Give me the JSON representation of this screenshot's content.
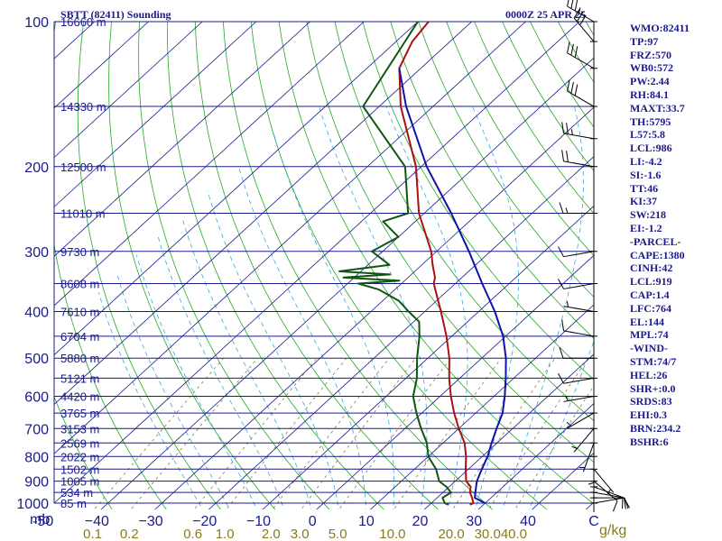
{
  "header": {
    "title": "SBTT (82411) Sounding",
    "datetime": "0000Z 25 APR 25"
  },
  "indices": [
    "WMO:82411",
    "TP:97",
    "FRZ:570",
    "WB0:572",
    "PW:2.44",
    "RH:84.1",
    "MAXT:33.7",
    "TH:5795",
    "L57:5.8",
    "LCL:986",
    "LI:-4.2",
    "SI:-1.6",
    "TT:46",
    "KI:37",
    "SW:218",
    "EI:-1.2",
    "-PARCEL-",
    "CAPE:1380",
    "CINH:42",
    "LCL:919",
    "CAP:1.4",
    "LFC:764",
    "EL:144",
    "MPL:74",
    "-WIND-",
    "STM:74/7",
    "HEL:26",
    "SHR+:0.0",
    "SRDS:83",
    "EHI:0.3",
    "BRN:234.2",
    "BSHR:6"
  ],
  "axes": {
    "pressure_unit": "mb",
    "mixing_ratio_unit": "g/kg"
  },
  "colors": {
    "grid": "#1a1a8c",
    "dry_adiabat": "#22aa22",
    "moist_adiabat": "#33aadd",
    "mixing_ratio": "#8a7a3a",
    "temperature": "#aa1111",
    "dewpoint": "#115511",
    "parcel": "#1111aa",
    "mixing_labels": "#8a7a1a"
  },
  "chart_data": {
    "type": "line",
    "title": "SBTT (82411) Sounding",
    "subtitle": "0000Z 25 APR 25",
    "xlabel": "",
    "ylabel": "mb",
    "y_scale": "log",
    "pressure_levels": [
      100,
      200,
      300,
      400,
      500,
      600,
      700,
      800,
      900,
      1000
    ],
    "temperature_ticks": [
      -50,
      -40,
      -30,
      -20,
      -10,
      0,
      10,
      20,
      30,
      40
    ],
    "temperature_tick_labels": [
      "-50",
      "−40",
      "−30",
      "−20",
      "−10",
      "0",
      "10",
      "20",
      "30",
      "40",
      "C"
    ],
    "mixing_ratio_ticks": [
      0.1,
      0.2,
      0.6,
      1.0,
      2.0,
      3.0,
      5.0,
      10.0,
      20.0,
      30.0,
      40.0
    ],
    "mixing_ratio_tick_labels": [
      "0.1",
      "0.2",
      "0.6",
      "1.0",
      "2.0",
      "3.0",
      "5.0",
      "10.0",
      "20.0",
      "30.0",
      "40.0",
      "g/kg"
    ],
    "height_labels": [
      {
        "p": 100,
        "label": "16660 m"
      },
      {
        "p": 150,
        "label": "14330 m"
      },
      {
        "p": 200,
        "label": "12500 m"
      },
      {
        "p": 250,
        "label": "11010 m"
      },
      {
        "p": 300,
        "label": "9730 m"
      },
      {
        "p": 350,
        "label": "8608 m"
      },
      {
        "p": 400,
        "label": "7610 m"
      },
      {
        "p": 450,
        "label": "6704 m"
      },
      {
        "p": 500,
        "label": "5880 m"
      },
      {
        "p": 550,
        "label": "5121 m"
      },
      {
        "p": 600,
        "label": "4420 m"
      },
      {
        "p": 650,
        "label": "3765 m"
      },
      {
        "p": 700,
        "label": "3153 m"
      },
      {
        "p": 750,
        "label": "2569 m"
      },
      {
        "p": 800,
        "label": "2022 m"
      },
      {
        "p": 850,
        "label": "1502 m"
      },
      {
        "p": 900,
        "label": "1005 m"
      },
      {
        "p": 950,
        "label": "534 m"
      },
      {
        "p": 1000,
        "label": "85 m"
      }
    ],
    "series": [
      {
        "name": "",
        "role": "temperature",
        "p": [
          1008,
          1000,
          975,
          950,
          925,
          900,
          850,
          800,
          750,
          700,
          650,
          600,
          550,
          500,
          450,
          400,
          350,
          340,
          320,
          300,
          250,
          200,
          150,
          125,
          110,
          100
        ],
        "t": [
          27.5,
          27.8,
          26.5,
          25.0,
          24.0,
          22.0,
          19.5,
          17.0,
          14.0,
          10.0,
          6.0,
          2.0,
          -2.0,
          -6.0,
          -11.0,
          -17.0,
          -24.0,
          -25.0,
          -28.0,
          -31.0,
          -41.0,
          -51.0,
          -66.0,
          -74.0,
          -77.0,
          -78.0
        ]
      },
      {
        "name": "",
        "role": "dewpoint",
        "p": [
          1008,
          1000,
          975,
          950,
          925,
          900,
          850,
          800,
          750,
          700,
          650,
          600,
          550,
          500,
          450,
          420,
          400,
          380,
          360,
          350,
          345,
          340,
          335,
          330,
          320,
          300,
          280,
          260,
          250,
          200,
          150,
          100
        ],
        "t": [
          23.5,
          22.5,
          21.0,
          21.5,
          19.5,
          17.0,
          14.0,
          10.0,
          7.0,
          3.0,
          -1.0,
          -5.0,
          -8.0,
          -12.0,
          -16.0,
          -19.0,
          -23.0,
          -27.0,
          -33.0,
          -38.0,
          -31.0,
          -42.0,
          -34.0,
          -44.0,
          -36.0,
          -42.0,
          -40.0,
          -46.0,
          -43.0,
          -53.0,
          -73.0,
          -80.0
        ]
      },
      {
        "name": "",
        "role": "parcel",
        "p": [
          1000,
          975,
          950,
          925,
          900,
          850,
          800,
          750,
          700,
          650,
          600,
          550,
          500,
          450,
          400,
          350,
          300,
          250,
          200,
          150,
          125
        ],
        "t": [
          30.0,
          27.0,
          26.0,
          25.0,
          24.0,
          22.5,
          21.0,
          19.0,
          17.0,
          15.0,
          12.0,
          8.5,
          4.5,
          -0.5,
          -7.0,
          -15.0,
          -24.0,
          -35.0,
          -49.0,
          -65.0,
          -74.0
        ]
      }
    ],
    "wind_barbs": [
      {
        "p": 1000,
        "dir": 80,
        "spd": 10
      },
      {
        "p": 975,
        "dir": 90,
        "spd": 10
      },
      {
        "p": 950,
        "dir": 100,
        "spd": 10
      },
      {
        "p": 925,
        "dir": 110,
        "spd": 10
      },
      {
        "p": 900,
        "dir": 130,
        "spd": 10
      },
      {
        "p": 850,
        "dir": 140,
        "spd": 5
      },
      {
        "p": 800,
        "dir": 180,
        "spd": 5
      },
      {
        "p": 750,
        "dir": 200,
        "spd": 5
      },
      {
        "p": 700,
        "dir": 220,
        "spd": 5
      },
      {
        "p": 650,
        "dir": 240,
        "spd": 5
      },
      {
        "p": 600,
        "dir": 260,
        "spd": 5
      },
      {
        "p": 550,
        "dir": 260,
        "spd": 10
      },
      {
        "p": 500,
        "dir": 270,
        "spd": 10
      },
      {
        "p": 450,
        "dir": 280,
        "spd": 10
      },
      {
        "p": 400,
        "dir": 280,
        "spd": 5
      },
      {
        "p": 350,
        "dir": 260,
        "spd": 10
      },
      {
        "p": 300,
        "dir": 260,
        "spd": 10
      },
      {
        "p": 250,
        "dir": 270,
        "spd": 15
      },
      {
        "p": 200,
        "dir": 280,
        "spd": 20
      },
      {
        "p": 175,
        "dir": 280,
        "spd": 25
      },
      {
        "p": 150,
        "dir": 300,
        "spd": 30
      },
      {
        "p": 125,
        "dir": 300,
        "spd": 30
      },
      {
        "p": 110,
        "dir": 320,
        "spd": 30
      },
      {
        "p": 100,
        "dir": 300,
        "spd": 35
      }
    ]
  }
}
